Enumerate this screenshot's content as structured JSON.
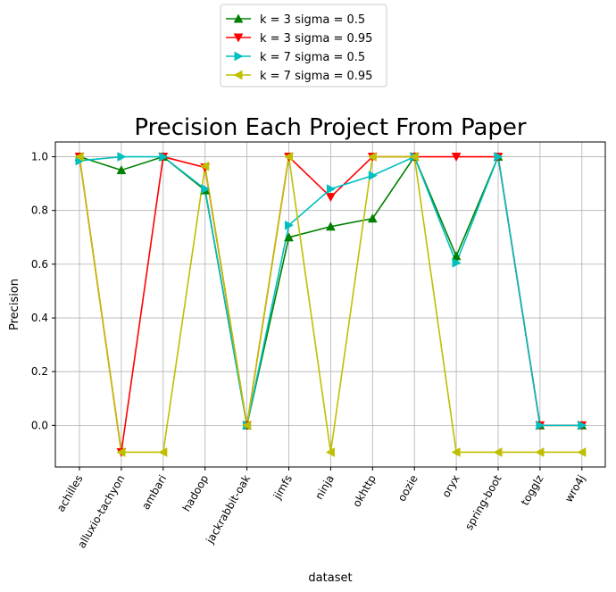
{
  "chart_data": {
    "type": "line",
    "title": "Precision Each Project From Paper",
    "xlabel": "dataset",
    "ylabel": "Precision",
    "ylim": [
      -0.155,
      1.055
    ],
    "yticks": [
      0.0,
      0.2,
      0.4,
      0.6,
      0.8,
      1.0
    ],
    "ytick_labels": [
      "0.0",
      "0.2",
      "0.4",
      "0.6",
      "0.8",
      "1.0"
    ],
    "grid": true,
    "legend_position": "top-center",
    "categories": [
      "achilles",
      "alluxio-tachyon",
      "ambari",
      "hadoop",
      "jackrabbit-oak",
      "jimfs",
      "ninja",
      "okhttp",
      "oozie",
      "oryx",
      "spring-boot",
      "togglz",
      "wro4j"
    ],
    "series": [
      {
        "name": "k = 3 sigma = 0.5",
        "color": "#008000",
        "marker": "triangle-up",
        "values": [
          1.0,
          0.95,
          1.0,
          0.875,
          0.0,
          0.7,
          0.74,
          0.77,
          1.0,
          0.63,
          1.0,
          0.0,
          0.0
        ]
      },
      {
        "name": "k = 3 sigma = 0.95",
        "color": "#ff0000",
        "marker": "triangle-down",
        "values": [
          1.0,
          -0.1,
          1.0,
          0.96,
          0.0,
          1.0,
          0.85,
          1.0,
          1.0,
          1.0,
          1.0,
          0.0,
          0.0
        ]
      },
      {
        "name": "k = 7 sigma = 0.5",
        "color": "#00bfbf",
        "marker": "triangle-right",
        "values": [
          0.985,
          1.0,
          1.0,
          0.88,
          0.0,
          0.745,
          0.88,
          0.93,
          1.0,
          0.605,
          1.0,
          0.0,
          0.0
        ]
      },
      {
        "name": "k = 7 sigma = 0.95",
        "color": "#bfbf00",
        "marker": "triangle-left",
        "values": [
          1.0,
          -0.1,
          -0.1,
          0.965,
          0.0,
          1.0,
          -0.1,
          1.0,
          1.0,
          -0.1,
          -0.1,
          -0.1,
          -0.1
        ]
      }
    ]
  }
}
